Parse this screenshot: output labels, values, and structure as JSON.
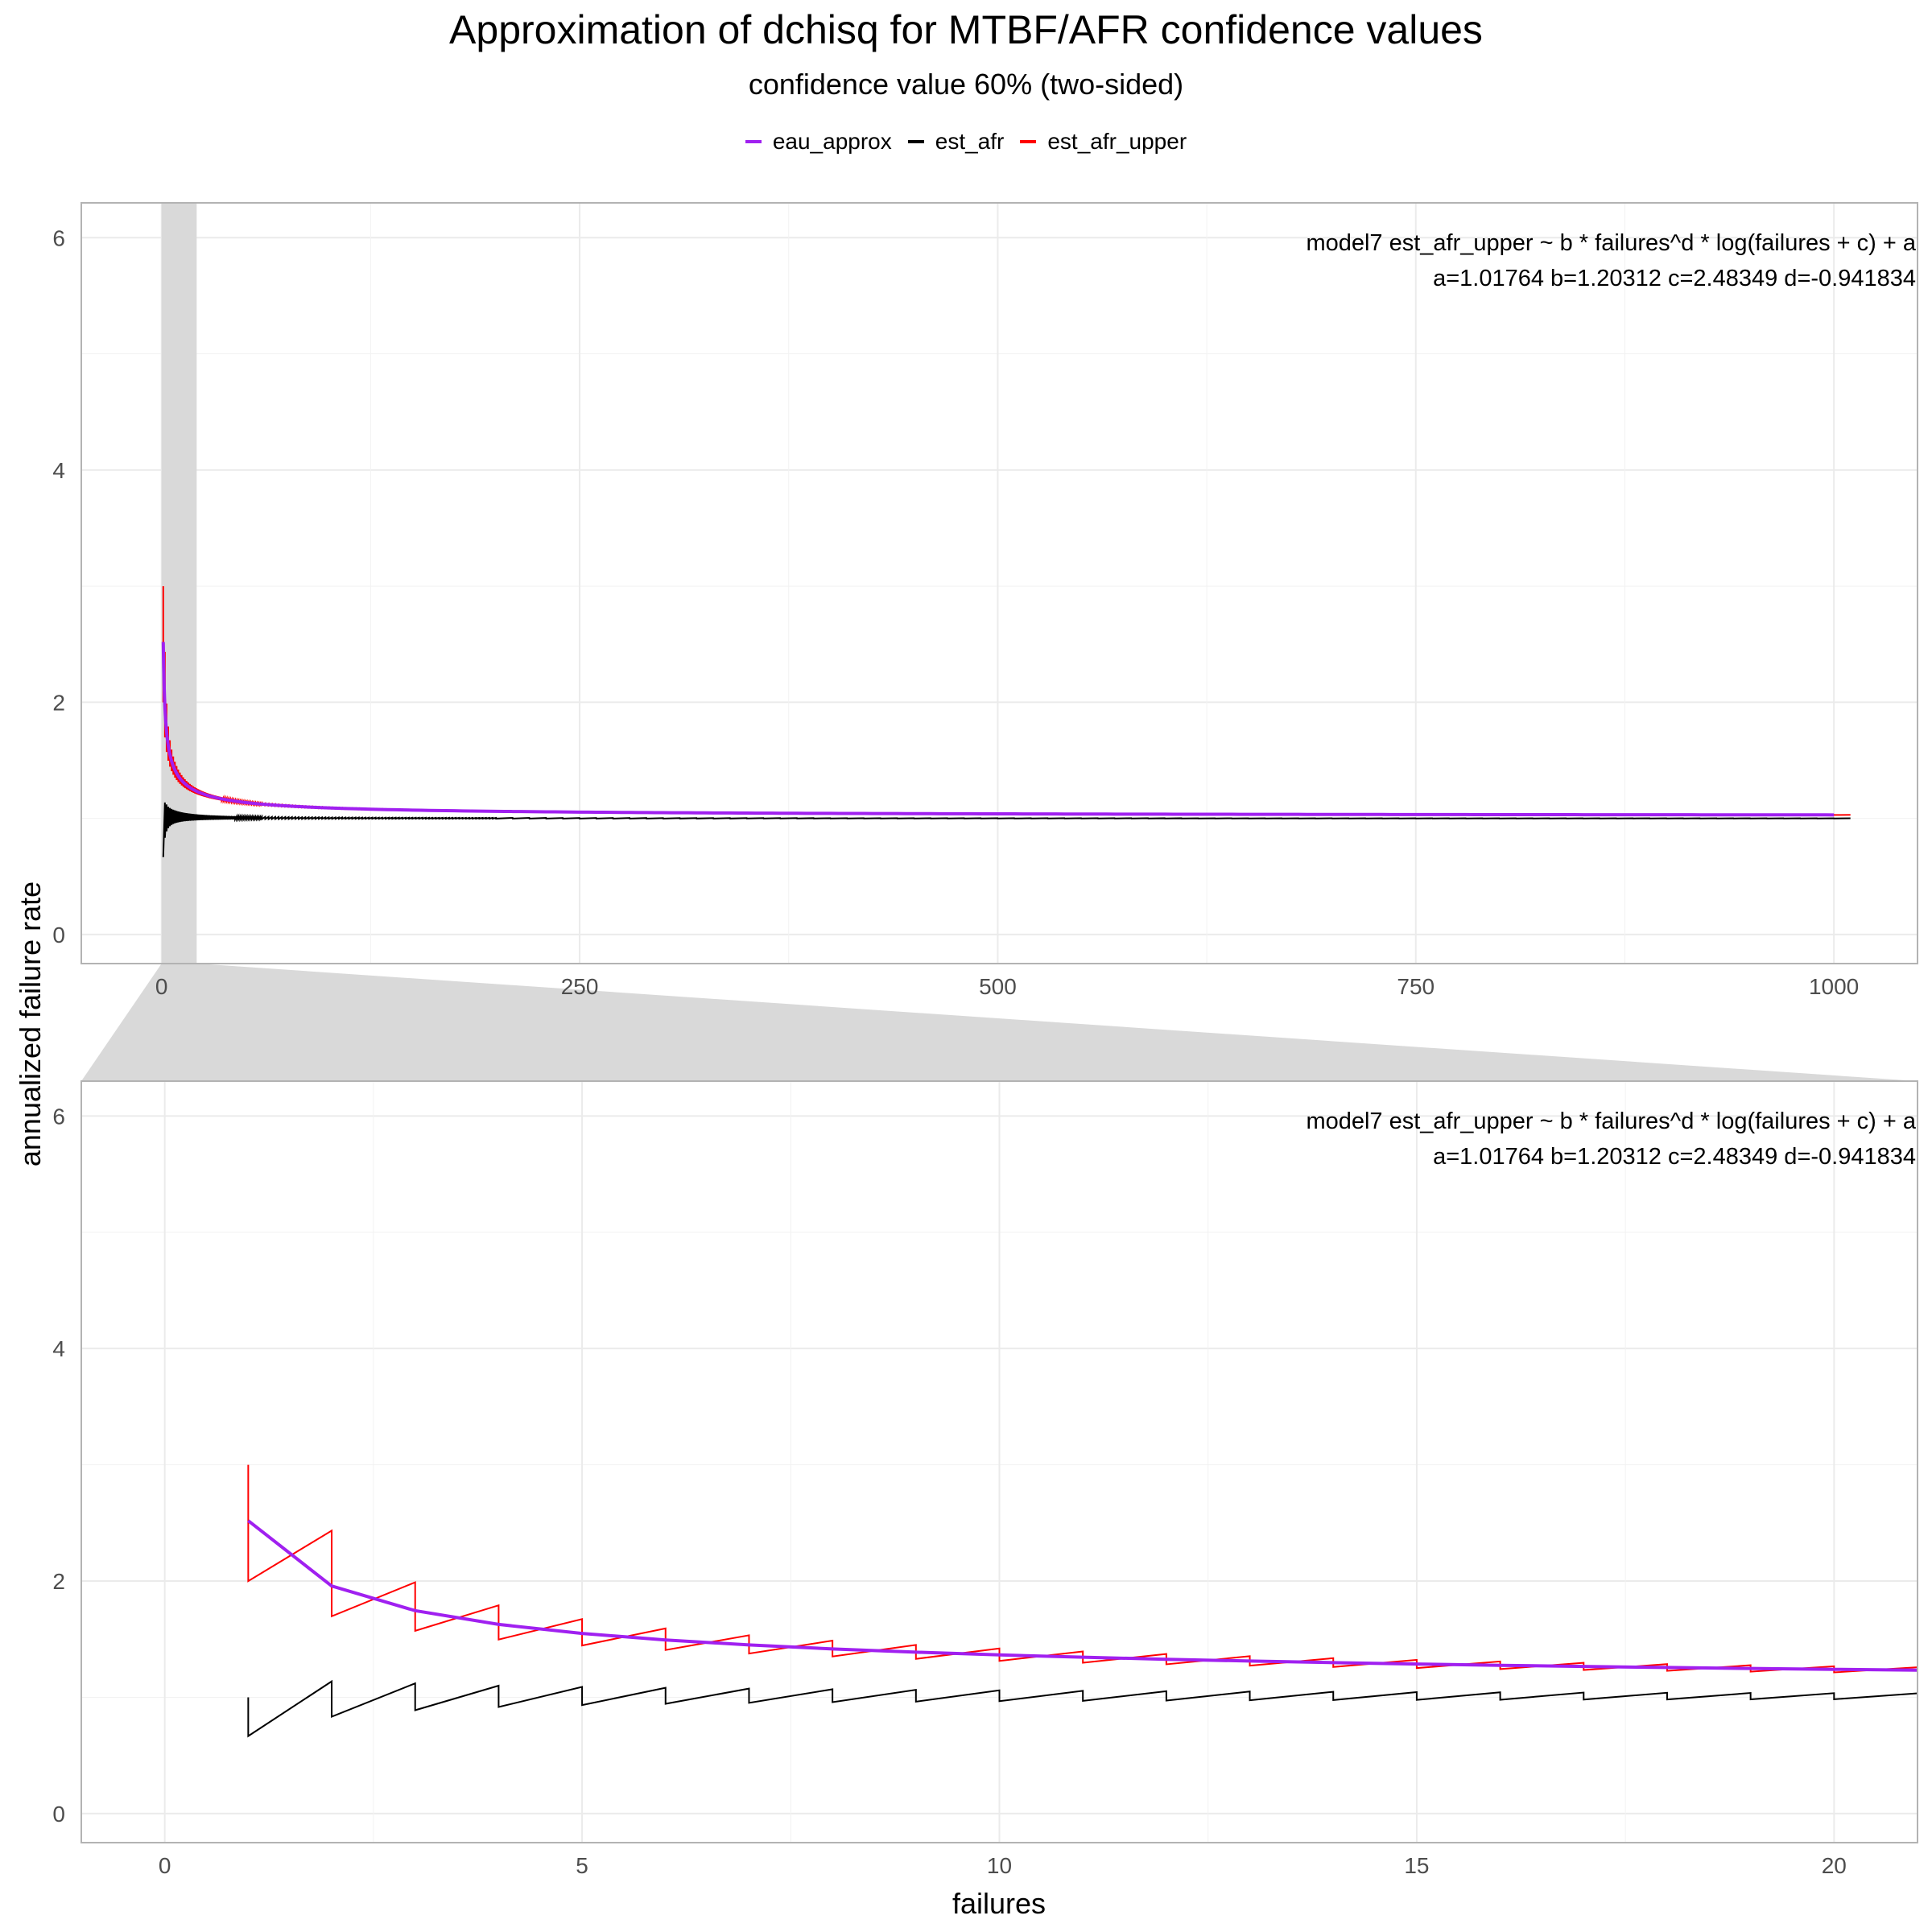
{
  "title": "Approximation of dchisq for MTBF/AFR confidence values",
  "subtitle": "confidence value 60% (two-sided)",
  "legend": [
    {
      "label": "eau_approx",
      "color": "#a020f0"
    },
    {
      "label": "est_afr",
      "color": "#000000"
    },
    {
      "label": "est_afr_upper",
      "color": "#ff0000"
    }
  ],
  "chart_data": {
    "type": "line",
    "xlabel": "failures",
    "ylabel": "annualized failure rate",
    "grid": true,
    "legend_position": "top",
    "model": {
      "a": 1.01764,
      "b": 1.20312,
      "c": 2.48349,
      "d": -0.941834
    },
    "annotation": [
      "model7 est_afr_upper ~ b * failures^d * log(failures + c) + a",
      "a=1.01764 b=1.20312 c=2.48349 d=-0.941834"
    ],
    "series": [
      {
        "name": "eau_approx",
        "color": "#a020f0",
        "style": "smooth model curve, failures 1 to 1000"
      },
      {
        "name": "est_afr",
        "color": "#000000",
        "style": "sawtooth, drops to 1 - 1/3 at each integer, rises to 1 + 1/(n+1)"
      },
      {
        "name": "est_afr_upper",
        "color": "#ff0000",
        "style": "sawtooth around the model curve, starting at 3.0 for failures = 1"
      }
    ],
    "samples": {
      "x": [
        1,
        2,
        3,
        4,
        5,
        6,
        7,
        8,
        9,
        10,
        15,
        20
      ],
      "eau_approx": [
        2.52,
        1.95,
        1.74,
        1.63,
        1.55,
        1.5,
        1.45,
        1.42,
        1.39,
        1.37,
        1.29,
        1.24
      ],
      "est_afr_upper_peak": [
        3.0,
        2.44,
        2.0,
        1.78,
        1.65,
        1.56,
        1.5,
        1.46,
        1.42,
        1.39,
        1.31,
        1.26
      ],
      "est_afr_peak": [
        1.0,
        1.14,
        1.09,
        1.06,
        1.05,
        1.04,
        1.03,
        1.03,
        1.02,
        1.02,
        1.01,
        1.01
      ]
    },
    "panels": [
      {
        "name": "overview",
        "xlim": [
          -48,
          1050
        ],
        "ylim": [
          -0.25,
          6.3
        ],
        "x_ticks": [
          0,
          250,
          500,
          750,
          1000
        ],
        "x_tick_labels": [
          "0",
          "250",
          "500",
          "750",
          "1000"
        ],
        "y_ticks": [
          0,
          2,
          4,
          6
        ],
        "y_tick_labels": [
          "0",
          "2",
          "4",
          "6"
        ],
        "zoom_range": [
          0,
          21
        ]
      },
      {
        "name": "zoom",
        "xlim": [
          -1,
          21
        ],
        "ylim": [
          -0.25,
          6.3
        ],
        "x_ticks": [
          0,
          5,
          10,
          15,
          20
        ],
        "x_tick_labels": [
          "0",
          "5",
          "10",
          "15",
          "20"
        ],
        "y_ticks": [
          0,
          2,
          4,
          6
        ],
        "y_tick_labels": [
          "0",
          "2",
          "4",
          "6"
        ]
      }
    ]
  }
}
